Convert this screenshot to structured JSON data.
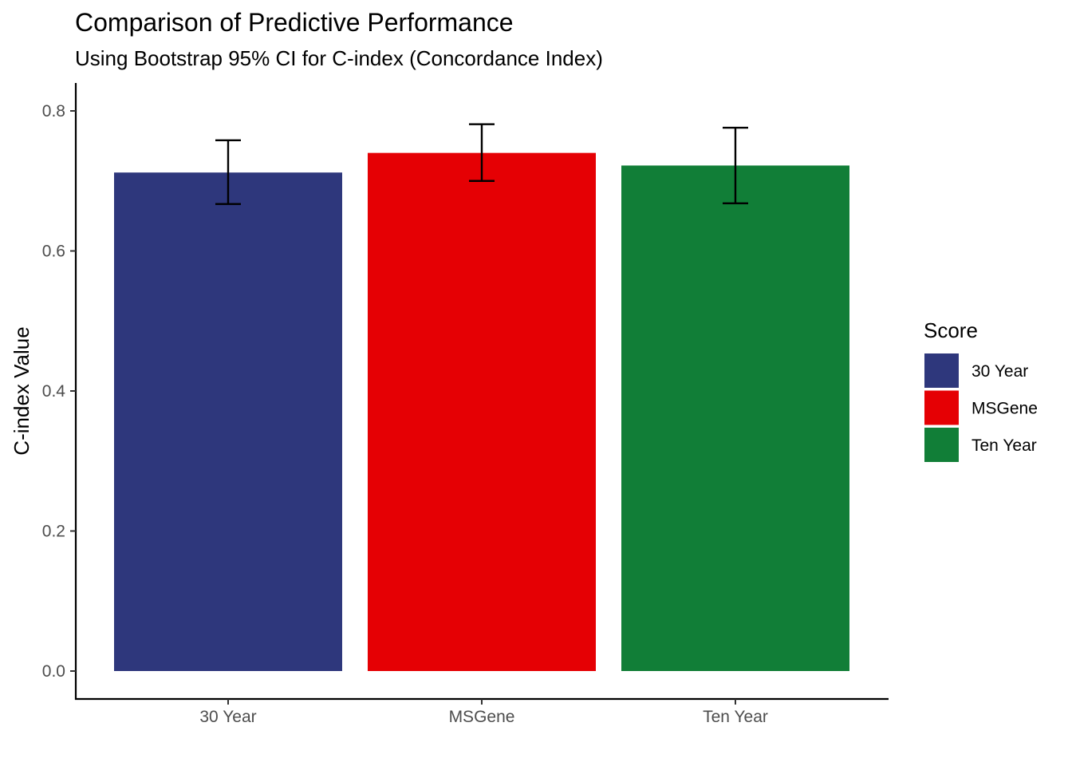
{
  "chart_data": {
    "type": "bar",
    "title": "Comparison of Predictive Performance",
    "subtitle": "Using Bootstrap 95% CI for C-index (Concordance Index)",
    "xlabel": "",
    "ylabel": "C-index Value",
    "ylim": [
      0,
      0.8
    ],
    "yticks": [
      "0.0",
      "0.2",
      "0.4",
      "0.6",
      "0.8"
    ],
    "ytick_values": [
      0,
      0.2,
      0.4,
      0.6,
      0.8
    ],
    "categories": [
      "30 Year",
      "MSGene",
      "Ten Year"
    ],
    "values": [
      0.712,
      0.74,
      0.722
    ],
    "ci_lower": [
      0.667,
      0.7,
      0.668
    ],
    "ci_upper": [
      0.758,
      0.781,
      0.776
    ],
    "colors": [
      "#2E377C",
      "#E50004",
      "#117E37"
    ],
    "grid": false,
    "legend": {
      "title": "Score",
      "position": "right",
      "entries": [
        "30 Year",
        "MSGene",
        "Ten Year"
      ]
    }
  }
}
